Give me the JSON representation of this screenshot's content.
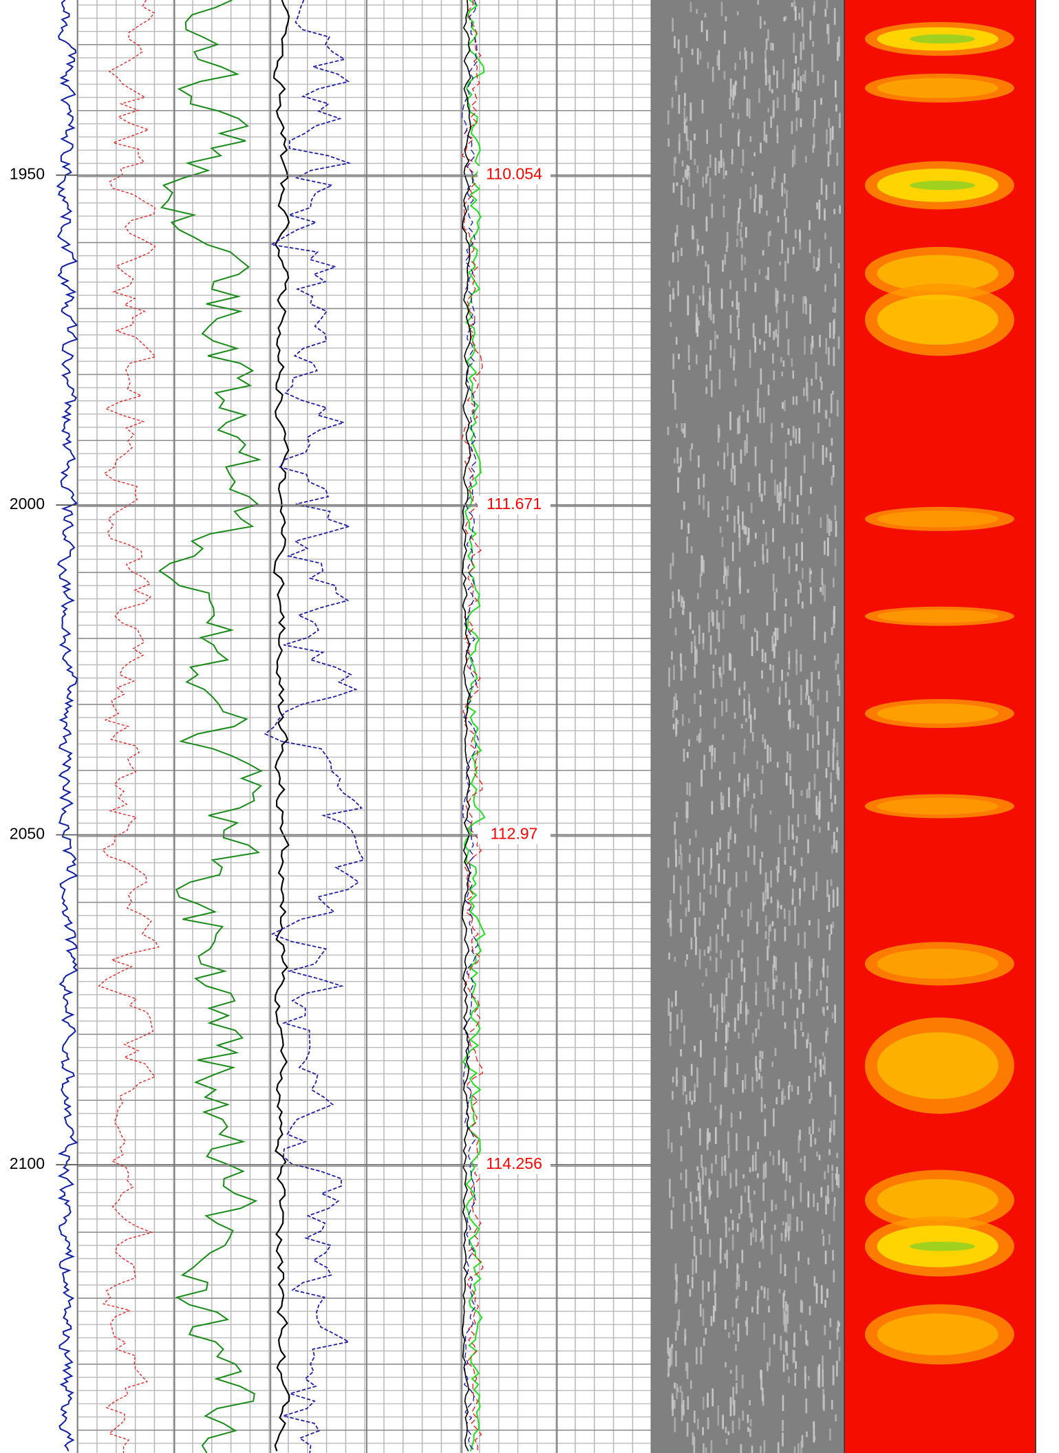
{
  "chart_data": {
    "type": "well-log",
    "ylim": [
      1923.45,
      2143.7
    ],
    "yticks": [
      1950,
      2000,
      2050,
      2100
    ],
    "annotations": [
      {
        "depth": 1950,
        "value": 110.054
      },
      {
        "depth": 2000,
        "value": 111.671
      },
      {
        "depth": 2050,
        "value": 112.97
      },
      {
        "depth": 2100,
        "value": 114.256
      }
    ],
    "grid": true
  }
}
